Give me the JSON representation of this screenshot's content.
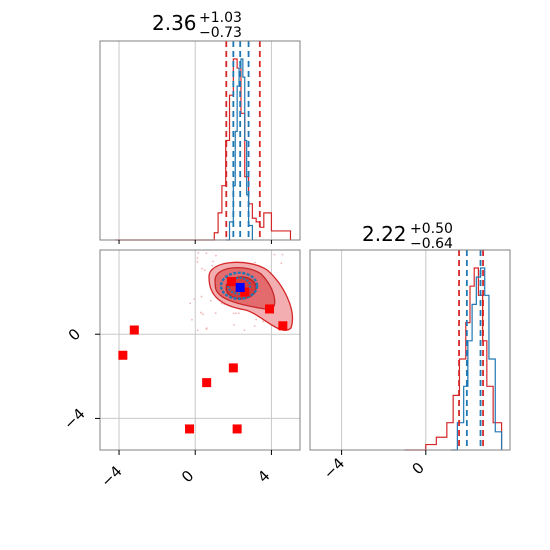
{
  "colors": {
    "blue": "#1f77b4",
    "red": "#d62728",
    "marker_red": "#ff0000",
    "marker_blue": "#0000ff",
    "grid": "#c8c8c8"
  },
  "chart_data": {
    "type": "corner",
    "panels": [
      {
        "id": "hist-param-1",
        "type": "histogram",
        "title": {
          "main": "2.36",
          "sup": "+1.03",
          "sub": "−0.73"
        },
        "xlim": [
          -5,
          5.5
        ],
        "x_ticks": [
          -4,
          0,
          4
        ],
        "grid": true,
        "series": [
          {
            "name": "",
            "color": "#d62728",
            "x": [
              -4.2,
              1.0,
              1.2,
              1.4,
              1.6,
              1.8,
              2.0,
              2.2,
              2.4,
              2.6,
              2.8,
              3.0,
              3.2,
              3.4,
              3.6,
              4.0,
              5.0
            ],
            "y": [
              0,
              0.04,
              0.15,
              0.3,
              0.55,
              0.8,
              1.0,
              0.95,
              0.7,
              0.35,
              0.2,
              0.12,
              0.1,
              0.07,
              0.15,
              0.05,
              0
            ]
          },
          {
            "name": "",
            "color": "#1f77b4",
            "x": [
              1.6,
              1.8,
              2.0,
              2.1,
              2.2,
              2.3,
              2.4,
              2.5,
              2.6,
              2.7,
              2.8,
              3.0
            ],
            "y": [
              0,
              0.1,
              0.3,
              0.6,
              0.85,
              0.95,
              1.0,
              0.9,
              0.55,
              0.25,
              0.08,
              0
            ]
          }
        ],
        "quantile_lines": [
          {
            "value": 1.63,
            "color": "#d62728"
          },
          {
            "value": 2.36,
            "color": "#1f77b4"
          },
          {
            "value": 2.0,
            "color": "#1f77b4"
          },
          {
            "value": 2.8,
            "color": "#1f77b4"
          },
          {
            "value": 3.39,
            "color": "#d62728"
          }
        ]
      },
      {
        "id": "scatter-2d",
        "type": "contour-scatter",
        "xlim": [
          -5,
          5.5
        ],
        "ylim": [
          -5.5,
          4
        ],
        "x_ticks": [
          -4,
          0,
          4
        ],
        "y_ticks": [
          0,
          -4
        ],
        "grid": true,
        "red_contour_center": [
          2.3,
          2.2
        ],
        "blue_contour_center": [
          2.3,
          2.3
        ],
        "red_markers": [
          {
            "x": -3.2,
            "y": 0.2
          },
          {
            "x": -3.8,
            "y": -1.0
          },
          {
            "x": 0.6,
            "y": -2.3
          },
          {
            "x": 2.0,
            "y": -1.6
          },
          {
            "x": -0.3,
            "y": -4.5
          },
          {
            "x": 2.2,
            "y": -4.5
          },
          {
            "x": 3.9,
            "y": 1.2
          },
          {
            "x": 4.6,
            "y": 0.4
          },
          {
            "x": 2.6,
            "y": 2.0
          },
          {
            "x": 1.9,
            "y": 2.5
          }
        ],
        "blue_marker": {
          "x": 2.36,
          "y": 2.22
        }
      },
      {
        "id": "hist-param-2",
        "type": "histogram",
        "title": {
          "main": "2.22",
          "sup": "+0.50",
          "sub": "−0.64"
        },
        "xlim": [
          -5.5,
          4.0
        ],
        "x_ticks": [
          -4,
          0
        ],
        "grid": true,
        "series": [
          {
            "name": "",
            "color": "#d62728",
            "x": [
              -1.0,
              0.0,
              0.5,
              1.0,
              1.3,
              1.6,
              1.9,
              2.1,
              2.3,
              2.5,
              2.7,
              2.9,
              3.2,
              3.6
            ],
            "y": [
              0,
              0.03,
              0.07,
              0.15,
              0.3,
              0.5,
              0.7,
              0.9,
              1.0,
              0.85,
              0.6,
              0.35,
              0.15,
              0
            ]
          },
          {
            "name": "",
            "color": "#1f77b4",
            "x": [
              1.2,
              1.5,
              1.8,
              2.0,
              2.2,
              2.4,
              2.6,
              2.8,
              3.0,
              3.3,
              3.6
            ],
            "y": [
              0,
              0.15,
              0.35,
              0.6,
              0.8,
              0.95,
              1.0,
              0.85,
              0.5,
              0.1,
              0
            ]
          }
        ],
        "quantile_lines": [
          {
            "value": 1.58,
            "color": "#d62728"
          },
          {
            "value": 1.95,
            "color": "#1f77b4"
          },
          {
            "value": 2.6,
            "color": "#1f77b4"
          },
          {
            "value": 2.72,
            "color": "#d62728"
          }
        ]
      }
    ]
  }
}
